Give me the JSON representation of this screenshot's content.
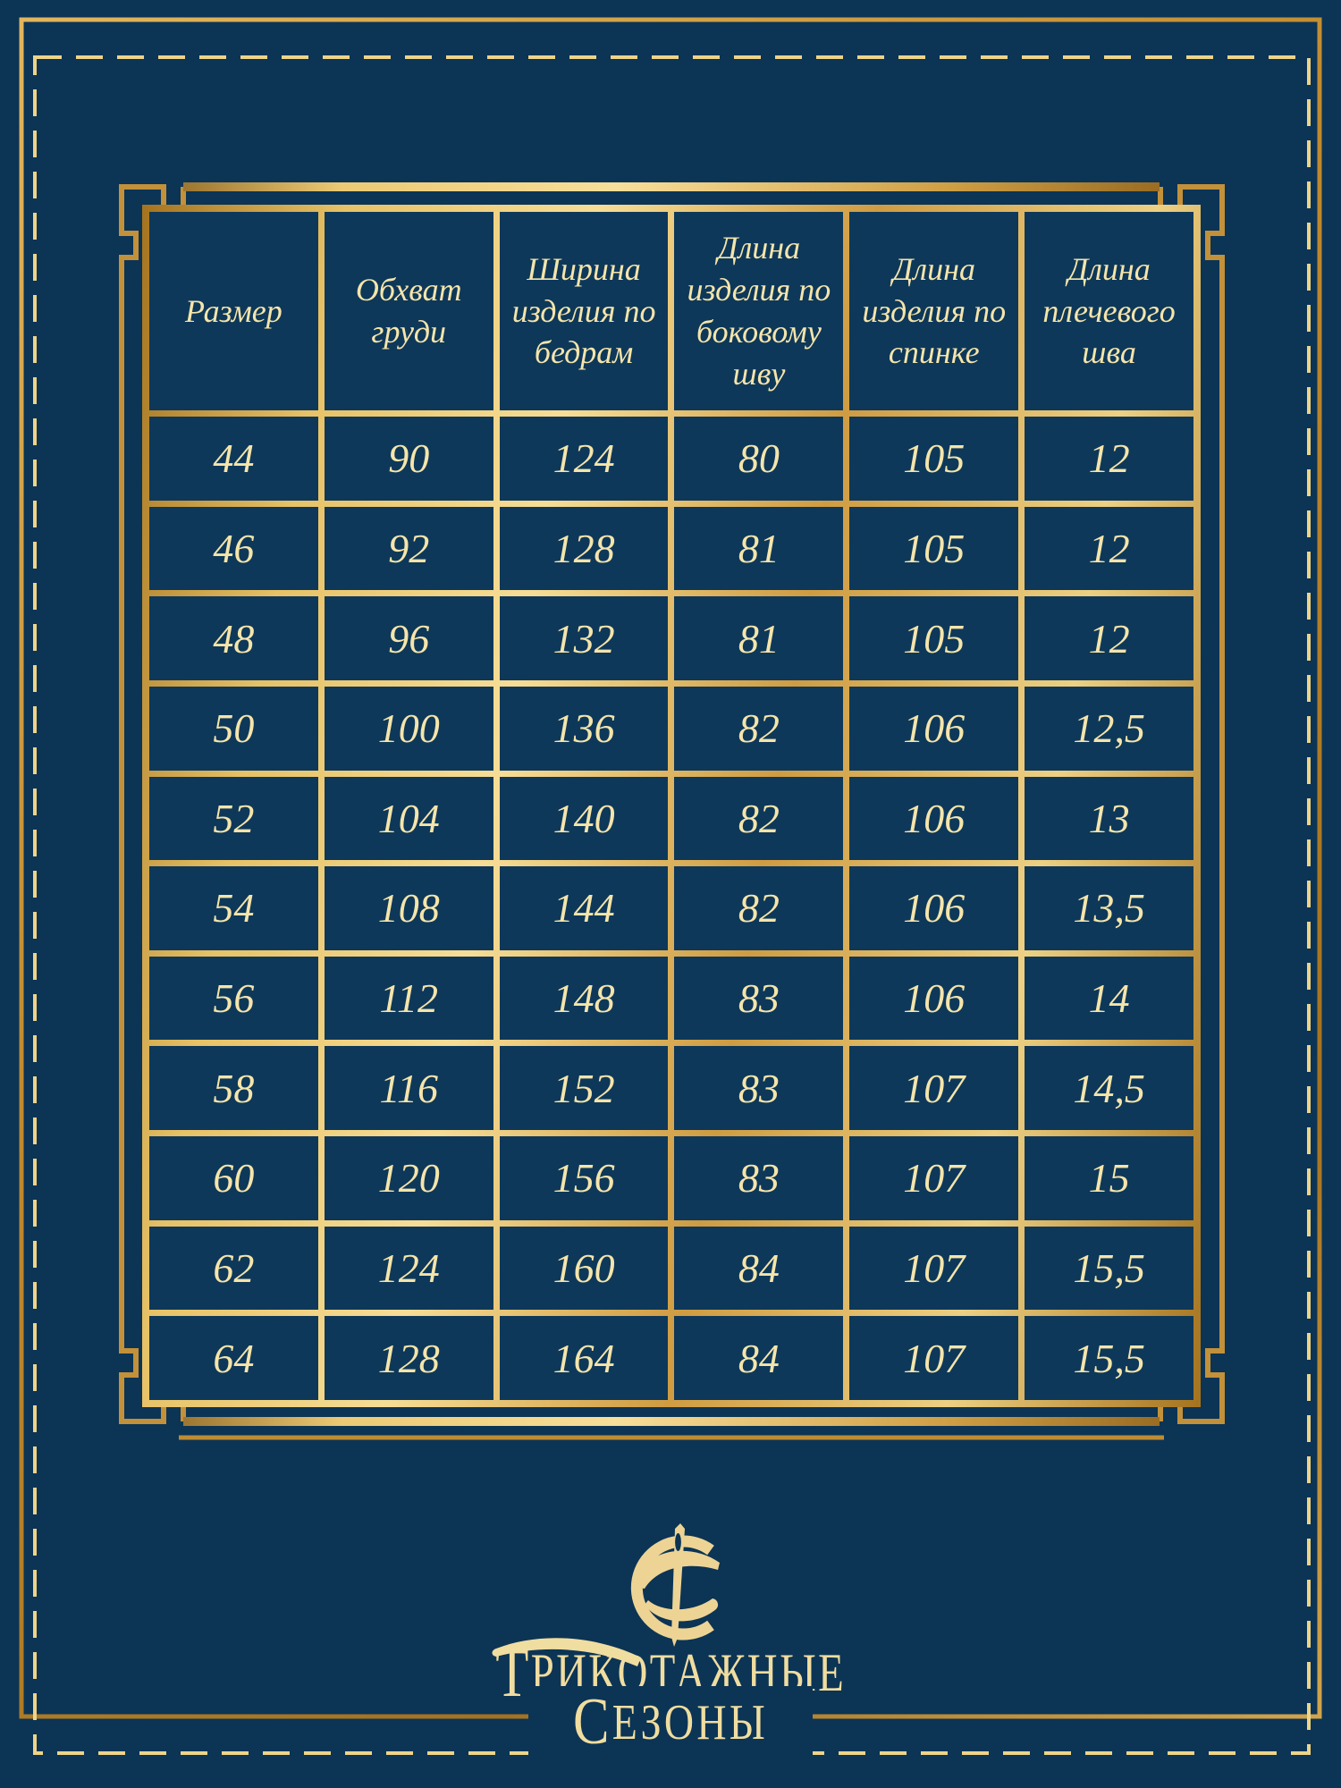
{
  "page": {
    "background_navy": "#0c3455",
    "cell_navy": "#0e3859",
    "gold_dark": "#a5731f",
    "gold_light": "#f6dd96",
    "dashed_line_gold": "#eed489",
    "text_cream": "#f5e5ab"
  },
  "size_table": {
    "headers": [
      "Размер",
      "Обхват груди",
      "Ширина изделия по бедрам",
      "Длина изделия по боковому шву",
      "Длина изделия по спинке",
      "Длина плечевого шва"
    ],
    "rows": [
      [
        "44",
        "90",
        "124",
        "80",
        "105",
        "12"
      ],
      [
        "46",
        "92",
        "128",
        "81",
        "105",
        "12"
      ],
      [
        "48",
        "96",
        "132",
        "81",
        "105",
        "12"
      ],
      [
        "50",
        "100",
        "136",
        "82",
        "106",
        "12,5"
      ],
      [
        "52",
        "104",
        "140",
        "82",
        "106",
        "13"
      ],
      [
        "54",
        "108",
        "144",
        "82",
        "106",
        "13,5"
      ],
      [
        "56",
        "112",
        "148",
        "83",
        "106",
        "14"
      ],
      [
        "58",
        "116",
        "152",
        "83",
        "107",
        "14,5"
      ],
      [
        "60",
        "120",
        "156",
        "83",
        "107",
        "15"
      ],
      [
        "62",
        "124",
        "160",
        "84",
        "107",
        "15,5"
      ],
      [
        "64",
        "128",
        "164",
        "84",
        "107",
        "15,5"
      ]
    ]
  },
  "brand": {
    "line1_initial": "Т",
    "line1_rest": "РИКОТАЖНЫЕ",
    "line2_initial": "С",
    "line2_rest": "ЕЗОНЫ",
    "full_name": "Трикотажные Сезоны",
    "monogram": "letter-C-with-knitting-needle"
  }
}
